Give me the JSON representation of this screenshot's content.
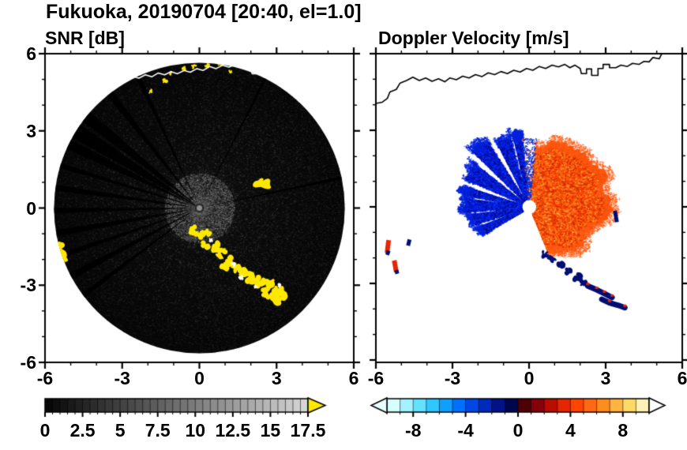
{
  "figure_title": "Fukuoka, 20190704 [20:40, el=1.0]",
  "panels": {
    "left_subtitle": "SNR [dB]",
    "right_subtitle": "Doppler Velocity [m/s]"
  },
  "coastline": [
    [
      -6,
      4.05
    ],
    [
      -5.75,
      4.1
    ],
    [
      -5.55,
      4.25
    ],
    [
      -5.45,
      4.5
    ],
    [
      -5.2,
      4.6
    ],
    [
      -5.05,
      4.85
    ],
    [
      -4.8,
      4.95
    ],
    [
      -4.55,
      5.08
    ],
    [
      -4.3,
      4.95
    ],
    [
      -4.05,
      5.05
    ],
    [
      -3.8,
      4.92
    ],
    [
      -3.55,
      5.02
    ],
    [
      -3.3,
      4.9
    ],
    [
      -3.1,
      5.05
    ],
    [
      -2.85,
      4.98
    ],
    [
      -2.6,
      5.12
    ],
    [
      -2.35,
      5.05
    ],
    [
      -2.1,
      5.18
    ],
    [
      -1.85,
      5.1
    ],
    [
      -1.6,
      5.25
    ],
    [
      -1.35,
      5.18
    ],
    [
      -1.1,
      5.3
    ],
    [
      -0.85,
      5.22
    ],
    [
      -0.6,
      5.35
    ],
    [
      -0.35,
      5.28
    ],
    [
      -0.1,
      5.42
    ],
    [
      0.15,
      5.35
    ],
    [
      0.4,
      5.5
    ],
    [
      0.65,
      5.42
    ],
    [
      0.9,
      5.55
    ],
    [
      1.15,
      5.48
    ],
    [
      1.4,
      5.58
    ],
    [
      1.6,
      5.45
    ],
    [
      1.8,
      5.55
    ],
    [
      2.0,
      5.42
    ],
    [
      2.05,
      5.22
    ],
    [
      2.25,
      5.22
    ],
    [
      2.25,
      5.4
    ],
    [
      2.45,
      5.4
    ],
    [
      2.45,
      5.15
    ],
    [
      2.7,
      5.15
    ],
    [
      2.7,
      5.42
    ],
    [
      2.9,
      5.42
    ],
    [
      2.9,
      5.58
    ],
    [
      3.15,
      5.58
    ],
    [
      3.15,
      5.45
    ],
    [
      3.4,
      5.45
    ],
    [
      3.6,
      5.55
    ],
    [
      3.85,
      5.5
    ],
    [
      4.05,
      5.62
    ],
    [
      4.3,
      5.58
    ],
    [
      4.5,
      5.7
    ],
    [
      4.7,
      5.68
    ],
    [
      4.85,
      5.85
    ],
    [
      5.1,
      5.8
    ],
    [
      5.2,
      6.0
    ]
  ],
  "chart_data": [
    {
      "type": "heatmap",
      "title": "SNR [dB]",
      "xlabel": "",
      "ylabel": "",
      "xlim": [
        -6,
        6
      ],
      "ylim": [
        -6,
        6
      ],
      "xticks": [
        -6,
        -3,
        0,
        3,
        6
      ],
      "yticks": [
        6,
        3,
        0,
        -3,
        -6
      ],
      "minor_tick_step": 1,
      "grid": false,
      "disk_center": [
        0,
        0
      ],
      "disk_radius": 5.65,
      "disk_base_color": "#060606",
      "shadow_rays": [
        [
          12,
          0.6
        ],
        [
          63,
          0.5
        ],
        [
          115,
          0.9
        ],
        [
          128,
          1.4
        ],
        [
          141,
          2.4
        ],
        [
          148,
          3.0
        ],
        [
          154,
          2.0
        ],
        [
          163,
          1.0
        ],
        [
          172,
          1.2
        ],
        [
          181,
          1.0
        ],
        [
          190,
          1.4
        ],
        [
          199,
          1.0
        ],
        [
          208,
          1.4
        ],
        [
          217,
          1.0
        ]
      ],
      "echo_patches": [
        [
          2.35,
          1.0,
          0.26
        ],
        [
          2.62,
          0.92,
          0.2
        ],
        [
          -0.3,
          -0.85,
          0.2
        ],
        [
          0.0,
          -1.05,
          0.24
        ],
        [
          0.3,
          -1.0,
          0.18
        ],
        [
          0.25,
          -1.45,
          0.2
        ],
        [
          0.6,
          -1.5,
          0.24
        ],
        [
          0.9,
          -1.75,
          0.26
        ],
        [
          1.15,
          -2.05,
          0.24
        ],
        [
          1.0,
          -2.35,
          0.2
        ],
        [
          1.45,
          -2.35,
          0.24
        ],
        [
          1.75,
          -2.55,
          0.26
        ],
        [
          2.05,
          -2.7,
          0.28
        ],
        [
          2.4,
          -2.85,
          0.26
        ],
        [
          2.75,
          -3.0,
          0.28
        ],
        [
          3.05,
          -3.25,
          0.28
        ],
        [
          2.55,
          -3.3,
          0.24
        ],
        [
          2.95,
          -3.55,
          0.26
        ],
        [
          3.25,
          -3.4,
          0.2
        ],
        [
          -5.5,
          -1.55,
          0.28
        ],
        [
          -5.38,
          -1.9,
          0.26
        ],
        [
          -5.28,
          -2.12,
          0.2
        ],
        [
          -1.35,
          4.95,
          0.12
        ],
        [
          -1.15,
          5.25,
          0.1
        ],
        [
          -0.62,
          5.42,
          0.1
        ],
        [
          -0.2,
          5.5,
          0.1
        ],
        [
          0.3,
          5.55,
          0.11
        ],
        [
          -1.9,
          4.55,
          0.1
        ],
        [
          1.2,
          5.3,
          0.08
        ],
        [
          0.8,
          5.6,
          0.09
        ]
      ],
      "white_patches": [
        [
          1.3,
          -2.2,
          0.1
        ],
        [
          1.62,
          -2.72,
          0.11
        ],
        [
          0.45,
          -1.25,
          0.08
        ],
        [
          2.2,
          -3.08,
          0.09
        ],
        [
          3.1,
          -3.0,
          0.08
        ]
      ],
      "colorbar": {
        "min": 0,
        "max": 17.5,
        "tick_labels": [
          0,
          2.5,
          5,
          7.5,
          10,
          12.5,
          15,
          17.5
        ],
        "palette": "grayscale",
        "start_color": "#080808",
        "end_color": "#d9d9d9",
        "over_color": "#ffe800"
      }
    },
    {
      "type": "heatmap",
      "title": "Doppler Velocity [m/s]",
      "xlabel": "",
      "ylabel": "",
      "xlim": [
        -6,
        6
      ],
      "ylim": [
        -6,
        6
      ],
      "xticks": [
        -6,
        -3,
        0,
        3,
        6
      ],
      "yticks": [
        6,
        3,
        0,
        -3,
        -6
      ],
      "minor_tick_step": 1,
      "grid": false,
      "center_hole_radius": 0.26,
      "blue_wedges": [
        [
          96,
          103,
          2.7
        ],
        [
          105,
          117,
          3.0
        ],
        [
          122,
          136,
          3.15
        ],
        [
          141,
          157,
          2.9
        ],
        [
          162,
          170,
          2.5
        ],
        [
          172,
          185,
          2.6
        ],
        [
          187,
          198,
          2.35
        ],
        [
          201,
          211,
          2.1
        ]
      ],
      "blue_colors": [
        "#0026ff",
        "#0010a8",
        "#00076e",
        "#1638ff",
        "#001ddd"
      ],
      "red_fan": {
        "a0": -68,
        "a1": 84,
        "radius_ctrl": [
          [
            -68,
            2.0
          ],
          [
            -45,
            2.35
          ],
          [
            -20,
            2.7
          ],
          [
            0,
            3.0
          ],
          [
            25,
            2.95
          ],
          [
            50,
            2.7
          ],
          [
            70,
            2.5
          ],
          [
            84,
            2.3
          ]
        ]
      },
      "red_colors": [
        "#ff3b00",
        "#e62e00",
        "#ff5c00",
        "#ff7f1e",
        "#cc2100",
        "#ff9933"
      ],
      "red_rare_yellow": "#ffe066",
      "navy_blobs": [
        [
          0.62,
          -1.85,
          0.15
        ],
        [
          0.92,
          -2.05,
          0.18
        ],
        [
          1.2,
          -2.3,
          0.2
        ],
        [
          1.55,
          -2.5,
          0.18
        ],
        [
          1.9,
          -2.75,
          0.2
        ],
        [
          2.15,
          -2.95,
          0.16
        ]
      ],
      "navy_arcs": [
        [
          [
            2.3,
            -3.1
          ],
          [
            2.65,
            -3.25
          ],
          [
            2.95,
            -3.4
          ],
          [
            3.25,
            -3.55
          ]
        ],
        [
          [
            2.85,
            -3.62
          ],
          [
            3.15,
            -3.76
          ],
          [
            3.5,
            -3.86
          ],
          [
            3.75,
            -3.95
          ]
        ]
      ],
      "isolated_patches": {
        "red_dashes": [
          [
            [
              -5.5,
              -1.3
            ],
            [
              -5.56,
              -1.8
            ]
          ],
          [
            [
              -5.28,
              -2.1
            ],
            [
              -5.2,
              -2.55
            ]
          ]
        ],
        "navy_dashes": [
          [
            [
              -4.68,
              -1.28
            ],
            [
              -4.74,
              -1.52
            ]
          ],
          [
            [
              3.36,
              -0.15
            ],
            [
              3.44,
              -0.6
            ]
          ],
          [
            [
              -5.5,
              -1.72
            ],
            [
              -5.56,
              -1.88
            ]
          ],
          [
            [
              -5.2,
              -2.48
            ],
            [
              -5.16,
              -2.62
            ]
          ]
        ]
      },
      "colorbar": {
        "min": -10,
        "max": 10,
        "tick_labels": [
          -8,
          -4,
          0,
          4,
          8
        ],
        "minor_tick_step": 1,
        "segment_colors": [
          "#d6ffff",
          "#a3f2ff",
          "#66e0ff",
          "#2fc7ff",
          "#0f9fff",
          "#0070ff",
          "#0047e6",
          "#0029bd",
          "#001387",
          "#00064d",
          "#4d0005",
          "#85000a",
          "#b80d00",
          "#e62600",
          "#ff4500",
          "#ff6914",
          "#ff8c1f",
          "#ffb340",
          "#ffd966",
          "#fff2b8"
        ],
        "under_color": "#e6ffff",
        "over_color": "#ffffff"
      }
    }
  ]
}
